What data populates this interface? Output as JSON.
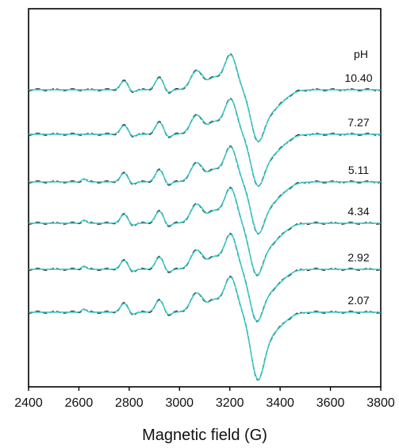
{
  "chart_data": {
    "type": "line",
    "title": "",
    "xlabel": "Magnetic field (G)",
    "ylabel": "",
    "xlim": [
      2400,
      3800
    ],
    "xticks": [
      2400,
      2600,
      2800,
      3000,
      3200,
      3400,
      3600,
      3800
    ],
    "y_axis_ticks": "none",
    "grid": false,
    "legend_header": "pH",
    "legend_placement": "right, above each trace",
    "series_styles": {
      "experimental": {
        "line": "dashed",
        "color": "#1d2b2e"
      },
      "simulated": {
        "line": "solid",
        "color": "#36c9c6"
      }
    },
    "spectra": [
      {
        "pH": "10.40",
        "field_range": [
          2400,
          3800
        ],
        "hyperfine_peaks_G": [
          2780,
          2920,
          3065,
          3205
        ],
        "trough_G": 3310
      },
      {
        "pH": "7.27",
        "field_range": [
          2400,
          3800
        ],
        "hyperfine_peaks_G": [
          2780,
          2920,
          3065,
          3205
        ],
        "trough_G": 3310
      },
      {
        "pH": "5.11",
        "field_range": [
          2400,
          3800
        ],
        "hyperfine_peaks_G": [
          2620,
          2780,
          2920,
          3065,
          3205
        ],
        "trough_G": 3310
      },
      {
        "pH": "4.34",
        "field_range": [
          2400,
          3800
        ],
        "hyperfine_peaks_G": [
          2620,
          2780,
          2920,
          3065,
          3205
        ],
        "trough_G": 3305
      },
      {
        "pH": "2.92",
        "field_range": [
          2400,
          3800
        ],
        "hyperfine_peaks_G": [
          2620,
          2780,
          2920,
          3065,
          3205
        ],
        "trough_G": 3305
      },
      {
        "pH": "2.07",
        "field_range": [
          2400,
          3800
        ],
        "hyperfine_peaks_G": [
          2620,
          2780,
          2920,
          3065,
          3205
        ],
        "trough_G": 3310
      }
    ]
  }
}
